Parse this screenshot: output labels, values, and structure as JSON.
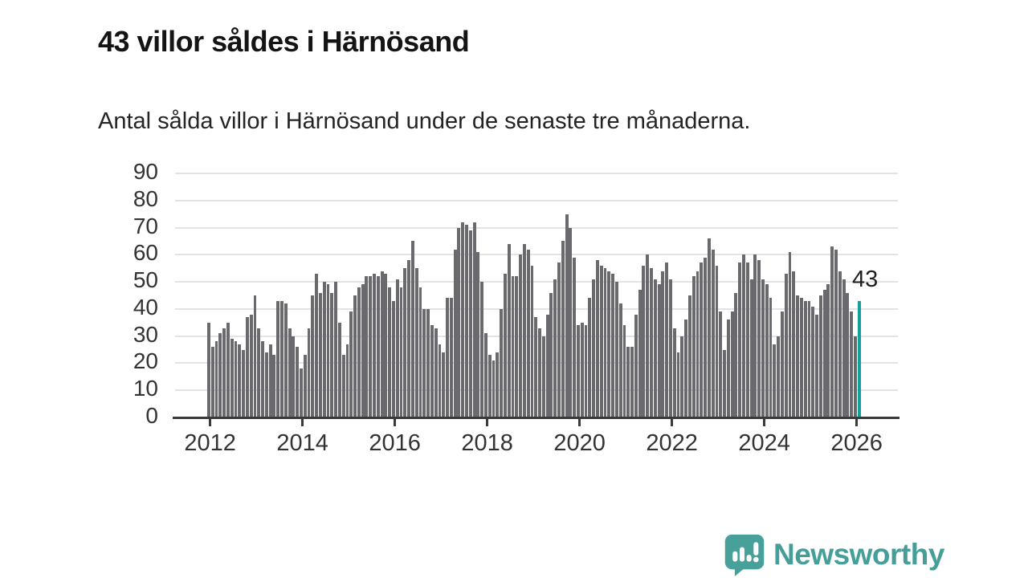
{
  "header": {
    "title": "43 villor såldes i Härnösand",
    "subtitle": "Antal sålda villor i Härnösand under de senaste tre månaderna."
  },
  "annotation": {
    "label": "43"
  },
  "branding": {
    "name": "Newsworthy",
    "icon": "newsworthy-speech-bubble-bar-chart-icon"
  },
  "colors": {
    "bar": "#6a6a6e",
    "highlight": "#12a19d",
    "grid": "#e3e3e3",
    "axis": "#3a3a3a",
    "text": "#333333",
    "brand": "#459e97"
  },
  "chart_data": {
    "type": "bar",
    "title": "43 villor såldes i Härnösand",
    "subtitle": "Antal sålda villor i Härnösand under de senaste tre månaderna.",
    "x_start": "2012-01",
    "frequency": "monthly",
    "x_tick_labels": [
      "2012",
      "2014",
      "2016",
      "2018",
      "2020",
      "2022",
      "2024",
      "2026"
    ],
    "y_tick_labels": [
      0,
      10,
      20,
      30,
      40,
      50,
      60,
      70,
      80,
      90
    ],
    "ylim": [
      0,
      90
    ],
    "grid": "horizontal",
    "legend": "none",
    "values": [
      35,
      26,
      28,
      31,
      33,
      35,
      29,
      28,
      27,
      25,
      37,
      38,
      45,
      33,
      28,
      24,
      27,
      23,
      43,
      43,
      42,
      33,
      30,
      26,
      18,
      23,
      33,
      45,
      53,
      46,
      50,
      49,
      46,
      50,
      35,
      23,
      27,
      39,
      45,
      48,
      49,
      52,
      52,
      53,
      52,
      54,
      53,
      48,
      43,
      51,
      48,
      55,
      58,
      65,
      55,
      48,
      40,
      40,
      34,
      33,
      27,
      24,
      44,
      44,
      62,
      70,
      72,
      71,
      69,
      72,
      61,
      50,
      31,
      23,
      21,
      24,
      40,
      53,
      64,
      52,
      52,
      60,
      64,
      62,
      56,
      37,
      33,
      30,
      38,
      46,
      51,
      57,
      65,
      75,
      70,
      59,
      34,
      35,
      34,
      44,
      51,
      58,
      56,
      55,
      54,
      53,
      50,
      42,
      34,
      26,
      26,
      38,
      47,
      56,
      60,
      55,
      51,
      49,
      54,
      57,
      51,
      33,
      24,
      30,
      36,
      45,
      52,
      54,
      57,
      59,
      66,
      62,
      56,
      39,
      25,
      36,
      39,
      46,
      57,
      60,
      57,
      51,
      60,
      58,
      51,
      49,
      44,
      27,
      30,
      39,
      53,
      61,
      54,
      45,
      44,
      43,
      43,
      41,
      38,
      45,
      47,
      49,
      63,
      62,
      54,
      51,
      46,
      39,
      30,
      43
    ],
    "highlight_index": 169,
    "highlight_value": 43,
    "highlight_label": "43"
  }
}
